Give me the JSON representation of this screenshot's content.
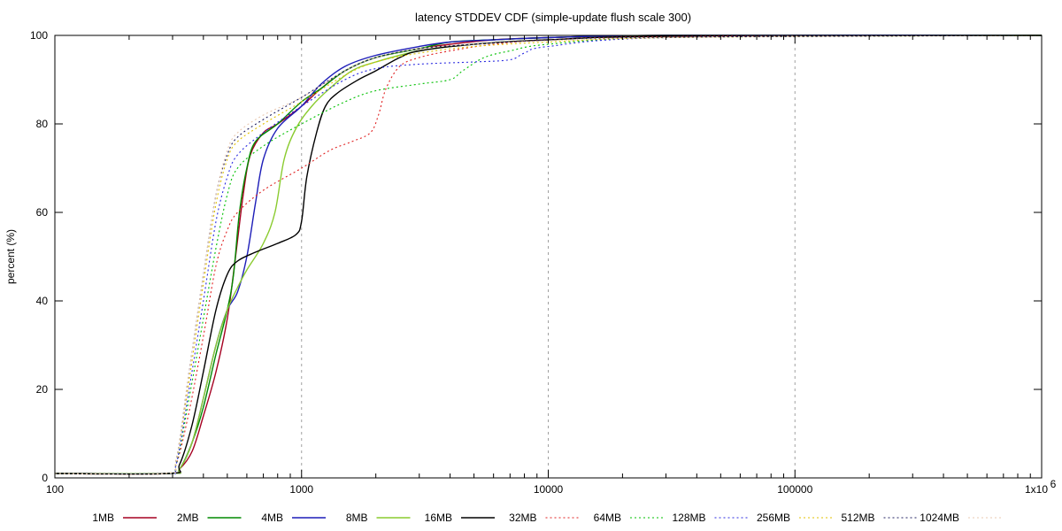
{
  "chart_data": {
    "type": "line",
    "title": "latency STDDEV CDF (simple-update flush scale 300)",
    "ylabel": "percent (%)",
    "xlabel": "",
    "x_scale": "log",
    "xlim": [
      100,
      1000000
    ],
    "ylim": [
      0,
      100
    ],
    "x_ticks": [
      100,
      1000,
      10000,
      100000,
      1000000
    ],
    "x_tick_labels": [
      "100",
      "1000",
      "10000",
      "100000",
      "1x10"
    ],
    "x_tick_last_exponent": "6",
    "y_ticks": [
      0,
      20,
      40,
      60,
      80,
      100
    ],
    "y_tick_labels": [
      "0",
      "20",
      "40",
      "60",
      "80",
      "100"
    ],
    "grid": "vertical dashed at major x ticks",
    "legend_position": "bottom",
    "series": [
      {
        "name": "1MB",
        "color": "#a50021",
        "style": "solid",
        "points": [
          [
            100,
            1
          ],
          [
            290,
            1
          ],
          [
            320,
            2
          ],
          [
            360,
            6
          ],
          [
            400,
            14
          ],
          [
            450,
            24
          ],
          [
            500,
            36
          ],
          [
            540,
            50
          ],
          [
            580,
            64
          ],
          [
            620,
            73
          ],
          [
            700,
            78
          ],
          [
            800,
            80
          ],
          [
            1000,
            84
          ],
          [
            1200,
            88
          ],
          [
            1500,
            92
          ],
          [
            2000,
            95
          ],
          [
            3000,
            97
          ],
          [
            4000,
            98
          ],
          [
            6000,
            99
          ],
          [
            10000,
            99.5
          ],
          [
            30000,
            100
          ],
          [
            1000000,
            100
          ]
        ]
      },
      {
        "name": "2MB",
        "color": "#008a00",
        "style": "solid",
        "points": [
          [
            100,
            1
          ],
          [
            290,
            1
          ],
          [
            320,
            2
          ],
          [
            360,
            8
          ],
          [
            400,
            16
          ],
          [
            450,
            28
          ],
          [
            500,
            38
          ],
          [
            530,
            46
          ],
          [
            560,
            60
          ],
          [
            600,
            70
          ],
          [
            650,
            76
          ],
          [
            800,
            80
          ],
          [
            1000,
            85
          ],
          [
            1200,
            88
          ],
          [
            1500,
            92
          ],
          [
            2000,
            95
          ],
          [
            3000,
            97
          ],
          [
            4000,
            98.5
          ],
          [
            6000,
            99
          ],
          [
            10000,
            99.5
          ],
          [
            30000,
            100
          ],
          [
            1000000,
            100
          ]
        ]
      },
      {
        "name": "4MB",
        "color": "#1d1db8",
        "style": "solid",
        "points": [
          [
            100,
            1
          ],
          [
            290,
            1
          ],
          [
            320,
            2
          ],
          [
            360,
            8
          ],
          [
            400,
            18
          ],
          [
            450,
            30
          ],
          [
            500,
            38
          ],
          [
            550,
            42
          ],
          [
            600,
            50
          ],
          [
            650,
            62
          ],
          [
            700,
            72
          ],
          [
            800,
            79
          ],
          [
            1000,
            84
          ],
          [
            1200,
            89
          ],
          [
            1500,
            93
          ],
          [
            2000,
            95.5
          ],
          [
            3000,
            97.5
          ],
          [
            4000,
            98.5
          ],
          [
            6000,
            99
          ],
          [
            10000,
            99.5
          ],
          [
            30000,
            100
          ],
          [
            1000000,
            100
          ]
        ]
      },
      {
        "name": "8MB",
        "color": "#8acb2f",
        "style": "solid",
        "points": [
          [
            100,
            1
          ],
          [
            290,
            1
          ],
          [
            320,
            2
          ],
          [
            360,
            8
          ],
          [
            400,
            18
          ],
          [
            450,
            30
          ],
          [
            500,
            38
          ],
          [
            550,
            43
          ],
          [
            600,
            47
          ],
          [
            700,
            53
          ],
          [
            780,
            60
          ],
          [
            850,
            72
          ],
          [
            950,
            79
          ],
          [
            1100,
            84
          ],
          [
            1300,
            88
          ],
          [
            1600,
            92
          ],
          [
            2000,
            94
          ],
          [
            3000,
            96.5
          ],
          [
            5000,
            98
          ],
          [
            10000,
            99
          ],
          [
            30000,
            99.8
          ],
          [
            1000000,
            100
          ]
        ]
      },
      {
        "name": "16MB",
        "color": "#000000",
        "style": "solid",
        "points": [
          [
            100,
            1
          ],
          [
            290,
            1
          ],
          [
            320,
            3
          ],
          [
            360,
            12
          ],
          [
            400,
            24
          ],
          [
            450,
            38
          ],
          [
            500,
            46
          ],
          [
            550,
            49
          ],
          [
            650,
            51
          ],
          [
            800,
            53
          ],
          [
            950,
            55
          ],
          [
            1000,
            58
          ],
          [
            1050,
            68
          ],
          [
            1150,
            78
          ],
          [
            1250,
            84
          ],
          [
            1400,
            87
          ],
          [
            1700,
            90
          ],
          [
            2000,
            92
          ],
          [
            2500,
            95
          ],
          [
            3000,
            96.5
          ],
          [
            5000,
            98
          ],
          [
            10000,
            99
          ],
          [
            30000,
            99.8
          ],
          [
            1000000,
            100
          ]
        ]
      },
      {
        "name": "32MB",
        "color": "#e02020",
        "style": "dotted",
        "points": [
          [
            100,
            1
          ],
          [
            280,
            1
          ],
          [
            310,
            3
          ],
          [
            350,
            15
          ],
          [
            400,
            32
          ],
          [
            450,
            48
          ],
          [
            500,
            56
          ],
          [
            550,
            60
          ],
          [
            700,
            65
          ],
          [
            1000,
            70
          ],
          [
            1300,
            74
          ],
          [
            1600,
            76
          ],
          [
            1900,
            78
          ],
          [
            2050,
            82
          ],
          [
            2200,
            88
          ],
          [
            2500,
            93
          ],
          [
            3000,
            95
          ],
          [
            4000,
            96.5
          ],
          [
            6000,
            98
          ],
          [
            10000,
            99
          ],
          [
            30000,
            99.7
          ],
          [
            1000000,
            100
          ]
        ]
      },
      {
        "name": "64MB",
        "color": "#00c000",
        "style": "dotted",
        "points": [
          [
            100,
            1
          ],
          [
            280,
            1
          ],
          [
            310,
            3
          ],
          [
            350,
            18
          ],
          [
            400,
            36
          ],
          [
            450,
            52
          ],
          [
            500,
            64
          ],
          [
            550,
            70
          ],
          [
            700,
            75
          ],
          [
            1000,
            80
          ],
          [
            1500,
            85
          ],
          [
            2000,
            87.5
          ],
          [
            3000,
            89
          ],
          [
            4000,
            90
          ],
          [
            4500,
            92
          ],
          [
            5500,
            95
          ],
          [
            7000,
            96.5
          ],
          [
            10000,
            98
          ],
          [
            30000,
            99.5
          ],
          [
            1000000,
            100
          ]
        ]
      },
      {
        "name": "128MB",
        "color": "#2a2ae0",
        "style": "dotted",
        "points": [
          [
            100,
            1
          ],
          [
            280,
            1
          ],
          [
            310,
            3
          ],
          [
            350,
            20
          ],
          [
            400,
            40
          ],
          [
            450,
            58
          ],
          [
            500,
            68
          ],
          [
            550,
            73
          ],
          [
            700,
            78
          ],
          [
            1000,
            84
          ],
          [
            1500,
            90
          ],
          [
            2000,
            92.5
          ],
          [
            3000,
            93.5
          ],
          [
            5000,
            94
          ],
          [
            7000,
            94.5
          ],
          [
            8000,
            96
          ],
          [
            10000,
            97.5
          ],
          [
            30000,
            99.5
          ],
          [
            1000000,
            100
          ]
        ]
      },
      {
        "name": "256MB",
        "color": "#e0c000",
        "style": "dotted",
        "points": [
          [
            100,
            1
          ],
          [
            280,
            1
          ],
          [
            310,
            4
          ],
          [
            350,
            22
          ],
          [
            400,
            44
          ],
          [
            450,
            62
          ],
          [
            500,
            72
          ],
          [
            550,
            76
          ],
          [
            700,
            80
          ],
          [
            1000,
            85
          ],
          [
            1500,
            91
          ],
          [
            2000,
            94
          ],
          [
            3000,
            96
          ],
          [
            5000,
            97.5
          ],
          [
            10000,
            98.5
          ],
          [
            30000,
            99.5
          ],
          [
            1000000,
            100
          ]
        ]
      },
      {
        "name": "512MB",
        "color": "#202060",
        "style": "dotted",
        "points": [
          [
            100,
            1
          ],
          [
            280,
            1
          ],
          [
            310,
            4
          ],
          [
            350,
            24
          ],
          [
            400,
            46
          ],
          [
            450,
            64
          ],
          [
            500,
            73
          ],
          [
            550,
            77
          ],
          [
            700,
            81
          ],
          [
            1000,
            86
          ],
          [
            1500,
            92
          ],
          [
            2000,
            95
          ],
          [
            3000,
            97
          ],
          [
            5000,
            98
          ],
          [
            10000,
            99
          ],
          [
            30000,
            99.6
          ],
          [
            1000000,
            100
          ]
        ]
      },
      {
        "name": "1024MB",
        "color": "#e8c8b0",
        "style": "dotted",
        "points": [
          [
            100,
            1
          ],
          [
            280,
            1
          ],
          [
            310,
            4
          ],
          [
            350,
            24
          ],
          [
            400,
            46
          ],
          [
            450,
            64
          ],
          [
            500,
            74
          ],
          [
            550,
            78
          ],
          [
            700,
            82
          ],
          [
            1000,
            86
          ],
          [
            1500,
            92
          ],
          [
            2000,
            95
          ],
          [
            3000,
            97
          ],
          [
            5000,
            98
          ],
          [
            10000,
            98.8
          ],
          [
            30000,
            99.5
          ],
          [
            100000,
            99.8
          ],
          [
            1000000,
            100
          ]
        ]
      }
    ]
  }
}
